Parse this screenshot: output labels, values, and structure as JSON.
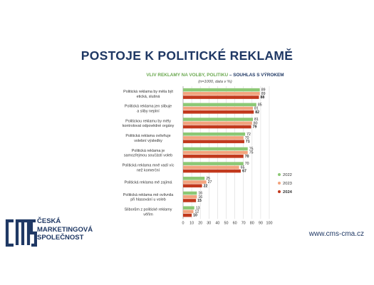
{
  "page": {
    "title": "POSTOJE K POLITICKÉ REKLAMĚ",
    "url": "www.cms-cma.cz"
  },
  "brand": {
    "lines": [
      "ČESKÁ",
      "MARKETINGOVÁ",
      "SPOLEČNOST"
    ],
    "logo_text": "cms"
  },
  "chart_data": {
    "type": "bar",
    "orientation": "horizontal",
    "title_part1": "VLIV REKLAMY NA VOLBY, POLITIKU",
    "title_part2": " – SOUHLAS S VÝROKEM",
    "subtitle": "(n=1000, data v %)",
    "categories": [
      "Politická reklama by měla být etická, slušná",
      "Politická reklama jen slibuje a sliby neplní",
      "Politickou reklamu by měly kontrolovat odpovědné orgány",
      "Politická reklama ovlivňuje volební výsledky",
      "Politická reklama je samozřejmou součástí voleb",
      "Politická reklama mně vadí víc než komerční",
      "Politická reklama mě zajímá",
      "Politická reklama mě ovlivnila při hlasování u voleb",
      "Sliborům z politické reklamy věřím"
    ],
    "series": [
      {
        "name": "2022",
        "color": "#8cc875",
        "values": [
          89,
          85,
          81,
          72,
          75,
          70,
          25,
          16,
          13
        ]
      },
      {
        "name": "2023",
        "color": "#f2a37d",
        "values": [
          89,
          81,
          80,
          70,
          75,
          65,
          27,
          16,
          12
        ]
      },
      {
        "name": "2024",
        "color": "#c2391d",
        "values": [
          88,
          82,
          79,
          71,
          70,
          67,
          22,
          15,
          10
        ]
      }
    ],
    "xlim": [
      0,
      100
    ],
    "xticks": [
      0,
      10,
      20,
      30,
      40,
      50,
      60,
      70,
      80,
      90,
      100
    ],
    "grid": true,
    "legend": "right"
  }
}
